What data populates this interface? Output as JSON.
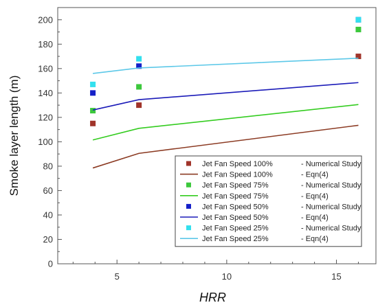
{
  "chart_data": {
    "type": "scatter",
    "xlabel": "HRR",
    "ylabel": "Smoke layer length (m)",
    "xlim": [
      2.3,
      16.8
    ],
    "ylim": [
      0,
      210
    ],
    "x_ticks": [
      5,
      10,
      15
    ],
    "y_ticks": [
      0,
      20,
      40,
      60,
      80,
      100,
      120,
      140,
      160,
      180,
      200
    ],
    "grid": false,
    "legend_position": "bottom-right",
    "series": [
      {
        "name": "Jet Fan Speed 100%",
        "name2": "- Numerical Study",
        "kind": "points",
        "color": "#a0342a",
        "x": [
          3.9,
          6,
          16
        ],
        "y": [
          115,
          130,
          170
        ]
      },
      {
        "name": "Jet Fan Speed 100%",
        "name2": "-         Eqn(4)",
        "kind": "line",
        "color": "#8b3a22",
        "x": [
          3.9,
          6,
          16
        ],
        "y": [
          78.5,
          90.5,
          113.5
        ]
      },
      {
        "name": "Jet Fan Speed 75%",
        "name2": "- Numerical Study",
        "kind": "points",
        "color": "#3cc83c",
        "x": [
          3.9,
          6,
          16
        ],
        "y": [
          125.5,
          145,
          192
        ]
      },
      {
        "name": "Jet Fan Speed 75%",
        "name2": "-         Eqn(4)",
        "kind": "line",
        "color": "#33cc1f",
        "x": [
          3.9,
          6,
          16
        ],
        "y": [
          101.5,
          111,
          130.5
        ]
      },
      {
        "name": "Jet Fan Speed 50%",
        "name2": "- Numerical Study",
        "kind": "points",
        "color": "#1520c8",
        "x": [
          3.9,
          6,
          16
        ],
        "y": [
          140,
          162,
          200
        ]
      },
      {
        "name": "Jet Fan Speed 50%",
        "name2": "-         Eqn(4)",
        "kind": "line",
        "color": "#1a1ab8",
        "x": [
          3.9,
          6,
          16
        ],
        "y": [
          126,
          134.5,
          148.5
        ]
      },
      {
        "name": "Jet Fan Speed 25%",
        "name2": "- Numerical Study",
        "kind": "points",
        "color": "#33e0ee",
        "x": [
          3.9,
          6,
          16
        ],
        "y": [
          147,
          168,
          200
        ]
      },
      {
        "name": "Jet Fan Speed 25%",
        "name2": "-         Eqn(4)",
        "kind": "line",
        "color": "#5cc8e8",
        "x": [
          3.9,
          6,
          16
        ],
        "y": [
          156,
          160.5,
          168.5
        ]
      }
    ]
  }
}
